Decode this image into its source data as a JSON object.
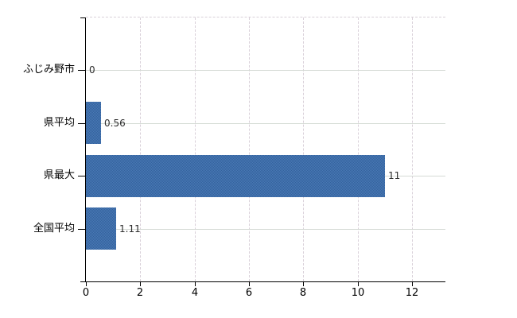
{
  "chart_data": {
    "type": "bar",
    "orientation": "horizontal",
    "title": "",
    "categories": [
      "ふじみ野市",
      "県平均",
      "県最大",
      "全国平均"
    ],
    "values": [
      0,
      0.56,
      11,
      1.11
    ],
    "value_labels": [
      "0",
      "0.56",
      "11",
      "1.11"
    ],
    "x_ticks": [
      0,
      2,
      4,
      6,
      8,
      10,
      12
    ],
    "x_tick_labels": [
      "0",
      "2",
      "4",
      "6",
      "8",
      "10",
      "12"
    ],
    "xlim": [
      0,
      13.23
    ],
    "grid": true,
    "legend": false,
    "colors": {
      "bar": "#3e6da8",
      "bar_dither_light": "#4a7ab6",
      "bar_dither_dark": "#33619c",
      "grid_horizontal": "#d5dbd5",
      "grid_vertical": "#d9d0d9",
      "axis": "#000000",
      "tick_text": "#000000",
      "value_text": "#2e2e2e",
      "background": "#ffffff"
    }
  }
}
